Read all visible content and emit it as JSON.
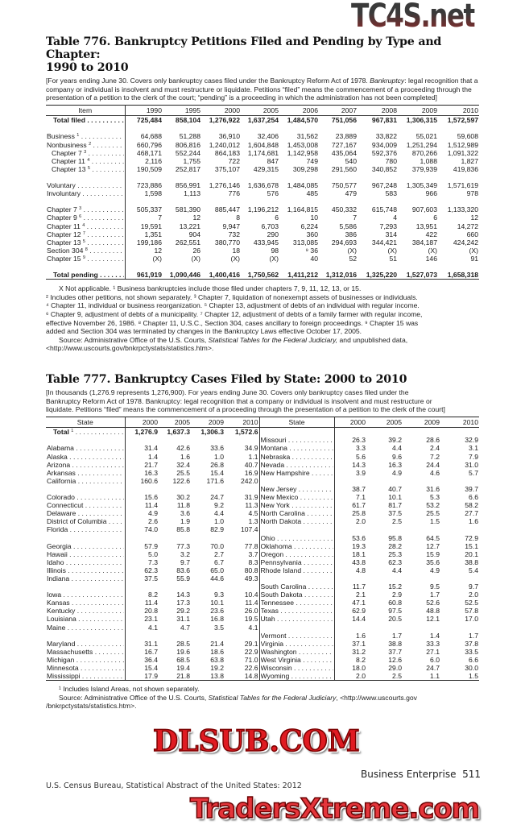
{
  "watermarks": {
    "top": "TC4S.net",
    "middle": "DLSUB.COM",
    "bottom": "TradersXtreme.com"
  },
  "table776": {
    "title_line1": "Table 776. Bankruptcy Petitions Filed and Pending by Type and Chapter:",
    "title_line2": "1990 to 2010",
    "headnote_a": "[For years ending June 30. Covers only bankruptcy cases filed under the Bankruptcy Reform Act of 1978. ",
    "headnote_term": "Bankruptcy",
    "headnote_b": ": legal recognition that a company or individual is insolvent and must restructure or liquidate. Petitions “filed” means the commencement of a proceeding through the presentation of a petition to the clerk of the  court; “pending” is a proceeding in which the administration has not been completed]",
    "columns": [
      "Item",
      "1990",
      "1995",
      "2000",
      "2005",
      "2006",
      "2007",
      "2008",
      "2009",
      "2010"
    ],
    "groups": [
      [
        {
          "label": "Total filed",
          "sup": "",
          "bold": true,
          "values": [
            "725,484",
            "858,104",
            "1,276,922",
            "1,637,254",
            "1,484,570",
            "751,056",
            "967,831",
            "1,306,315",
            "1,572,597"
          ]
        }
      ],
      [
        {
          "label": "Business",
          "sup": "1",
          "values": [
            "64,688",
            "51,288",
            "36,910",
            "32,406",
            "31,562",
            "23,889",
            "33,822",
            "55,021",
            "59,608"
          ]
        },
        {
          "label": "Nonbusiness",
          "sup": "2",
          "values": [
            "660,796",
            "806,816",
            "1,240,012",
            "1,604,848",
            "1,453,008",
            "727,167",
            "934,009",
            "1,251,294",
            "1,512,989"
          ]
        },
        {
          "label": "Chapter 7",
          "sup": "3",
          "indent": true,
          "values": [
            "468,171",
            "552,244",
            "864,183",
            "1,174,681",
            "1,142,958",
            "435,064",
            "592,376",
            "870,266",
            "1,091,322"
          ]
        },
        {
          "label": "Chapter 11",
          "sup": "4",
          "indent": true,
          "values": [
            "2,116",
            "1,755",
            "722",
            "847",
            "749",
            "540",
            "780",
            "1,088",
            "1,827"
          ]
        },
        {
          "label": "Chapter 13",
          "sup": "5",
          "indent": true,
          "values": [
            "190,509",
            "252,817",
            "375,107",
            "429,315",
            "309,298",
            "291,560",
            "340,852",
            "379,939",
            "419,836"
          ]
        }
      ],
      [
        {
          "label": "Voluntary",
          "sup": "",
          "values": [
            "723,886",
            "856,991",
            "1,276,146",
            "1,636,678",
            "1,484,085",
            "750,577",
            "967,248",
            "1,305,349",
            "1,571,619"
          ]
        },
        {
          "label": "Involuntary",
          "sup": "",
          "values": [
            "1,598",
            "1,113",
            "776",
            "576",
            "485",
            "479",
            "583",
            "966",
            "978"
          ]
        }
      ],
      [
        {
          "label": "Chapter 7",
          "sup": "3",
          "values": [
            "505,337",
            "581,390",
            "885,447",
            "1,196,212",
            "1,164,815",
            "450,332",
            "615,748",
            "907,603",
            "1,133,320"
          ]
        },
        {
          "label": "Chapter 9",
          "sup": "6",
          "values": [
            "7",
            "12",
            "8",
            "6",
            "10",
            "7",
            "4",
            "6",
            "12"
          ]
        },
        {
          "label": "Chapter 11",
          "sup": "4",
          "values": [
            "19,591",
            "13,221",
            "9,947",
            "6,703",
            "6,224",
            "5,586",
            "7,293",
            "13,951",
            "14,272"
          ]
        },
        {
          "label": "Chapter 12",
          "sup": "7",
          "values": [
            "1,351",
            "904",
            "732",
            "290",
            "360",
            "386",
            "314",
            "422",
            "660"
          ]
        },
        {
          "label": "Chapter 13",
          "sup": "5",
          "values": [
            "199,186",
            "262,551",
            "380,770",
            "433,945",
            "313,085",
            "294,693",
            "344,421",
            "384,187",
            "424,242"
          ]
        },
        {
          "label": "Section 304",
          "sup": "8",
          "values": [
            "12",
            "26",
            "18",
            "98",
            "⁹ 36",
            "(X)",
            "(X)",
            "(X)",
            "(X)"
          ]
        },
        {
          "label": "Chapter 15",
          "sup": "9",
          "values": [
            "(X)",
            "(X)",
            "(X)",
            "(X)",
            "40",
            "52",
            "51",
            "146",
            "91"
          ]
        }
      ],
      [
        {
          "label": "Total pending",
          "sup": "",
          "bold": true,
          "values": [
            "961,919",
            "1,090,446",
            "1,400,416",
            "1,750,562",
            "1,411,212",
            "1,312,016",
            "1,325,220",
            "1,527,073",
            "1,658,318"
          ]
        }
      ]
    ],
    "footnotes": [
      "X Not applicable. ¹ Business bankruptcies include those filed under chapters 7, 9, 11, 12, 13, or 15.",
      "² Includes other petitions, not shown separately. ³ Chapter 7, liquidation of nonexempt assets of businesses or individuals.",
      "⁴ Chapter 11, individual or business reorganization. ⁵ Chapter 13, adjustment of debts of an individual with regular income.",
      "⁶ Chapter 9, adjustment of debts of a municipality. ⁷ Chapter 12, adjustment of debts of a family farmer with regular  income,",
      "effective November 26, 1986. ⁸ Chapter 11, U.S.C., Section 304, cases ancillary to foreign proceedings. ⁹ Chapter 15 was",
      "added and Section 304 was terminated by changes in the Bankruptcy Laws effective October 17, 2005."
    ],
    "source_a": "Source: Administrative Office of the U.S. Courts, ",
    "source_title": "Statistical Tables for the Federal Judiciary,",
    "source_b": " and unpublished data,",
    "source_url": "<http://www.uscourts.gov/bnkrpctystats/statistics.htm>."
  },
  "table777": {
    "title": "Table 777. Bankruptcy Cases Filed by State: 2000 to 2010",
    "headnote_line1": "[In thousands (1,276.9 represents 1,276,900). For years ending June 30. Covers only bankruptcy cases filed under the",
    "headnote_line2": "Bankruptcy Reform Act of 1978. Bankruptcy: legal recognition that a company or individual is insolvent and must restructure or",
    "headnote_line3": "liquidate. Petitions “filed” means the commencement of a proceeding through the presentation of a petition to the clerk of the court]",
    "columns": [
      "State",
      "2000",
      "2005",
      "2009",
      "2010"
    ],
    "left_groups": [
      [
        {
          "state": "Total",
          "sup": "1",
          "bold": true,
          "values": [
            "1,276.9",
            "1,637.3",
            "1,306.3",
            "1,572.6"
          ]
        }
      ],
      [
        {
          "state": "Alabama",
          "values": [
            "31.4",
            "42.6",
            "33.6",
            "34.9"
          ]
        },
        {
          "state": "Alaska",
          "values": [
            "1.4",
            "1.6",
            "1.0",
            "1.1"
          ]
        },
        {
          "state": "Arizona",
          "values": [
            "21.7",
            "32.4",
            "26.8",
            "40.7"
          ]
        },
        {
          "state": "Arkansas",
          "values": [
            "16.3",
            "25.5",
            "15.4",
            "16.9"
          ]
        },
        {
          "state": "California",
          "values": [
            "160.6",
            "122.6",
            "171.6",
            "242.0"
          ]
        }
      ],
      [
        {
          "state": "Colorado",
          "values": [
            "15.6",
            "30.2",
            "24.7",
            "31.9"
          ]
        },
        {
          "state": "Connecticut",
          "values": [
            "11.4",
            "11.8",
            "9.2",
            "11.3"
          ]
        },
        {
          "state": "Delaware",
          "values": [
            "4.9",
            "3.6",
            "4.4",
            "4.5"
          ]
        },
        {
          "state": "District of Columbia",
          "values": [
            "2.6",
            "1.9",
            "1.0",
            "1.3"
          ]
        },
        {
          "state": "Florida",
          "values": [
            "74.0",
            "85.8",
            "82.9",
            "107.4"
          ]
        }
      ],
      [
        {
          "state": "Georgia",
          "values": [
            "57.9",
            "77.3",
            "70.0",
            "77.8"
          ]
        },
        {
          "state": "Hawaii",
          "values": [
            "5.0",
            "3.2",
            "2.7",
            "3.7"
          ]
        },
        {
          "state": "Idaho",
          "values": [
            "7.3",
            "9.7",
            "6.7",
            "8.3"
          ]
        },
        {
          "state": "Illinois",
          "values": [
            "62.3",
            "83.6",
            "65.0",
            "80.8"
          ]
        },
        {
          "state": "Indiana",
          "values": [
            "37.5",
            "55.9",
            "44.6",
            "49.3"
          ]
        }
      ],
      [
        {
          "state": "Iowa",
          "values": [
            "8.2",
            "14.3",
            "9.3",
            "10.4"
          ]
        },
        {
          "state": "Kansas",
          "values": [
            "11.4",
            "17.3",
            "10.1",
            "11.4"
          ]
        },
        {
          "state": "Kentucky",
          "values": [
            "20.8",
            "29.2",
            "23.6",
            "26.0"
          ]
        },
        {
          "state": "Louisiana",
          "values": [
            "23.1",
            "31.1",
            "16.8",
            "19.5"
          ]
        },
        {
          "state": "Maine",
          "values": [
            "4.1",
            "4.7",
            "3.5",
            "4.1"
          ]
        }
      ],
      [
        {
          "state": "Maryland",
          "values": [
            "31.1",
            "28.5",
            "21.4",
            "29.1"
          ]
        },
        {
          "state": "Massachusetts",
          "values": [
            "16.7",
            "19.6",
            "18.6",
            "22.9"
          ]
        },
        {
          "state": "Michigan",
          "values": [
            "36.4",
            "68.5",
            "63.8",
            "71.0"
          ]
        },
        {
          "state": "Minnesota",
          "values": [
            "15.4",
            "19.4",
            "19.2",
            "22.6"
          ]
        },
        {
          "state": "Mississippi",
          "values": [
            "17.9",
            "21.8",
            "13.8",
            "14.8"
          ]
        }
      ]
    ],
    "right_groups": [
      [],
      [
        {
          "state": "Missouri",
          "values": [
            "26.3",
            "39.2",
            "28.6",
            "32.9"
          ]
        },
        {
          "state": "Montana",
          "values": [
            "3.3",
            "4.4",
            "2.4",
            "3.1"
          ]
        },
        {
          "state": "Nebraska",
          "values": [
            "5.6",
            "9.6",
            "7.2",
            "7.9"
          ]
        },
        {
          "state": "Nevada",
          "values": [
            "14.3",
            "16.3",
            "24.4",
            "31.0"
          ]
        },
        {
          "state": "New Hampshire",
          "values": [
            "3.9",
            "4.9",
            "4.6",
            "5.7"
          ]
        }
      ],
      [
        {
          "state": "New Jersey",
          "values": [
            "38.7",
            "40.7",
            "31.6",
            "39.7"
          ]
        },
        {
          "state": "New Mexico",
          "values": [
            "7.1",
            "10.1",
            "5.3",
            "6.6"
          ]
        },
        {
          "state": "New York",
          "values": [
            "61.7",
            "81.7",
            "53.2",
            "58.2"
          ]
        },
        {
          "state": "North Carolina",
          "values": [
            "25.8",
            "37.5",
            "25.5",
            "27.7"
          ]
        },
        {
          "state": "North Dakota",
          "values": [
            "2.0",
            "2.5",
            "1.5",
            "1.6"
          ]
        }
      ],
      [
        {
          "state": "Ohio",
          "values": [
            "53.6",
            "95.8",
            "64.5",
            "72.9"
          ]
        },
        {
          "state": "Oklahoma",
          "values": [
            "19.3",
            "28.2",
            "12.7",
            "15.1"
          ]
        },
        {
          "state": "Oregon",
          "values": [
            "18.1",
            "25.3",
            "15.9",
            "20.1"
          ]
        },
        {
          "state": "Pennsylvania",
          "values": [
            "43.8",
            "62.3",
            "35.6",
            "38.8"
          ]
        },
        {
          "state": "Rhode Island",
          "values": [
            "4.8",
            "4.4",
            "4.9",
            "5.4"
          ]
        }
      ],
      [
        {
          "state": "South Carolina",
          "values": [
            "11.7",
            "15.2",
            "9.5",
            "9.7"
          ]
        },
        {
          "state": "South Dakota",
          "values": [
            "2.1",
            "2.9",
            "1.7",
            "2.0"
          ]
        },
        {
          "state": "Tennessee",
          "values": [
            "47.1",
            "60.8",
            "52.6",
            "52.5"
          ]
        },
        {
          "state": "Texas",
          "values": [
            "62.9",
            "97.5",
            "48.8",
            "57.8"
          ]
        },
        {
          "state": "Utah",
          "values": [
            "14.4",
            "20.5",
            "12.1",
            "17.0"
          ]
        }
      ],
      [
        {
          "state": "Vermont",
          "values": [
            "1.6",
            "1.7",
            "1.4",
            "1.7"
          ]
        },
        {
          "state": "Virginia",
          "values": [
            "37.1",
            "38.8",
            "33.3",
            "37.8"
          ]
        },
        {
          "state": "Washington",
          "values": [
            "31.2",
            "37.7",
            "27.1",
            "33.5"
          ]
        },
        {
          "state": "West Virginia",
          "values": [
            "8.2",
            "12.6",
            "6.0",
            "6.6"
          ]
        },
        {
          "state": "Wisconsin",
          "values": [
            "18.0",
            "29.0",
            "24.7",
            "30.0"
          ]
        },
        {
          "state": "Wyoming",
          "values": [
            "2.0",
            "2.5",
            "1.1",
            "1.5"
          ]
        }
      ]
    ],
    "footnote1": "¹ Includes Island Areas, not shown separately.",
    "source_a": "Source: Administrative Office of the U.S. Courts, ",
    "source_title": "Statistical Tables for the Federal Judiciary",
    "source_b": ", <http://www.uscourts.gov",
    "source_c": "/bnkrpctystats/statistics.htm>."
  },
  "footer": {
    "section": "Business Enterprise",
    "page_number": "511",
    "publication": "U.S. Census Bureau, Statistical Abstract of the United States: 2012"
  }
}
